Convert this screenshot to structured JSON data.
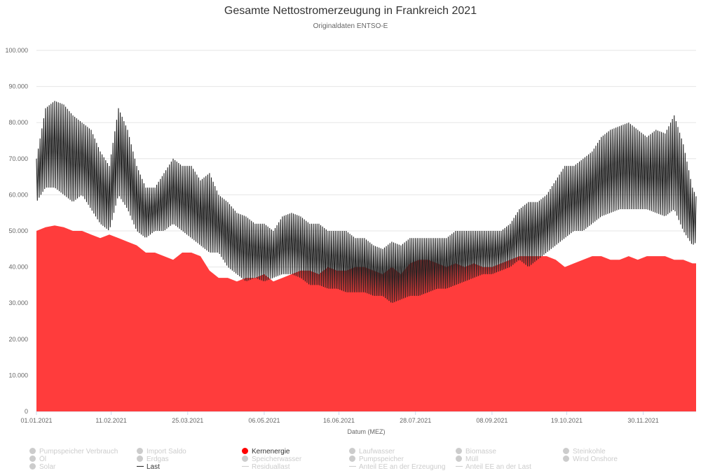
{
  "chart_data": {
    "type": "area",
    "title": "Gesamte Nettostromerzeugung in Frankreich 2021",
    "subtitle": "Originaldaten ENTSO-E",
    "xlabel": "Datum (MEZ)",
    "ylabel": "",
    "ylim": [
      0,
      100000
    ],
    "yticks": [
      "0",
      "10.000",
      "20.000",
      "30.000",
      "40.000",
      "50.000",
      "60.000",
      "70.000",
      "80.000",
      "90.000",
      "100.000"
    ],
    "xticks": [
      {
        "label": "01.01.2021",
        "day": 0
      },
      {
        "label": "11.02.2021",
        "day": 41
      },
      {
        "label": "25.03.2021",
        "day": 83
      },
      {
        "label": "06.05.2021",
        "day": 125
      },
      {
        "label": "16.06.2021",
        "day": 166
      },
      {
        "label": "28.07.2021",
        "day": 208
      },
      {
        "label": "08.09.2021",
        "day": 250
      },
      {
        "label": "19.10.2021",
        "day": 291
      },
      {
        "label": "30.11.2021",
        "day": 333
      }
    ],
    "x_step_days": 5,
    "series": [
      {
        "name": "Kernenergie",
        "color": "#ff3c3c",
        "type": "area",
        "values_thousand": [
          50,
          51,
          51.5,
          51,
          50,
          50,
          49,
          48,
          49,
          48,
          47,
          46,
          44,
          44,
          43,
          42,
          44,
          44,
          43,
          39,
          37,
          37,
          36,
          37,
          37,
          38,
          36,
          37,
          38,
          39,
          39,
          38,
          40,
          39,
          39,
          40,
          40,
          39,
          38,
          40,
          38,
          41,
          42,
          42,
          41,
          40,
          41,
          40,
          41,
          40,
          40,
          41,
          42,
          43,
          43,
          43,
          43,
          42,
          40,
          41,
          42,
          43,
          43,
          42,
          42,
          43,
          42,
          43,
          43,
          43,
          42,
          42,
          41,
          41
        ]
      },
      {
        "name": "Last",
        "color": "#222222",
        "type": "line",
        "daily_max_thousand": [
          70,
          84,
          86,
          85,
          82,
          80,
          78,
          72,
          68,
          84,
          78,
          68,
          62,
          62,
          66,
          70,
          68,
          68,
          64,
          66,
          60,
          58,
          55,
          54,
          52,
          52,
          50,
          54,
          55,
          54,
          52,
          52,
          50,
          50,
          50,
          48,
          48,
          46,
          45,
          47,
          46,
          48,
          48,
          48,
          48,
          48,
          50,
          50,
          50,
          50,
          50,
          50,
          52,
          56,
          58,
          58,
          60,
          64,
          68,
          68,
          70,
          72,
          76,
          78,
          79,
          80,
          78,
          76,
          78,
          77,
          82,
          74,
          62,
          56
        ],
        "daily_min_thousand": [
          58,
          62,
          62,
          60,
          58,
          60,
          56,
          52,
          50,
          60,
          56,
          50,
          48,
          50,
          50,
          52,
          50,
          48,
          46,
          44,
          44,
          40,
          38,
          36,
          37,
          36,
          37,
          38,
          38,
          37,
          35,
          35,
          34,
          34,
          33,
          33,
          33,
          32,
          32,
          30,
          31,
          32,
          32,
          33,
          34,
          34,
          35,
          36,
          37,
          38,
          38,
          39,
          40,
          42,
          40,
          42,
          44,
          46,
          48,
          50,
          50,
          52,
          54,
          55,
          56,
          56,
          56,
          56,
          55,
          54,
          56,
          50,
          46,
          48
        ]
      }
    ],
    "legend": {
      "placement": "bottom",
      "items": [
        {
          "label": "Pumpspeicher Verbrauch",
          "kind": "dot",
          "active": false
        },
        {
          "label": "Import Saldo",
          "kind": "dot",
          "active": false
        },
        {
          "label": "Kernenergie",
          "kind": "dot",
          "active": true,
          "color": "#ff0000"
        },
        {
          "label": "Laufwasser",
          "kind": "dot",
          "active": false
        },
        {
          "label": "Biomasse",
          "kind": "dot",
          "active": false
        },
        {
          "label": "Steinkohle",
          "kind": "dot",
          "active": false
        },
        {
          "label": "Öl",
          "kind": "dot",
          "active": false
        },
        {
          "label": "Erdgas",
          "kind": "dot",
          "active": false
        },
        {
          "label": "Speicherwasser",
          "kind": "dot",
          "active": false
        },
        {
          "label": "Pumpspeicher",
          "kind": "dot",
          "active": false
        },
        {
          "label": "Müll",
          "kind": "dot",
          "active": false
        },
        {
          "label": "Wind Onshore",
          "kind": "dot",
          "active": false
        },
        {
          "label": "Solar",
          "kind": "dot",
          "active": false
        },
        {
          "label": "Last",
          "kind": "line",
          "active": true,
          "color": "#222222"
        },
        {
          "label": "Residuallast",
          "kind": "line",
          "active": false
        },
        {
          "label": "Anteil EE an der Erzeugung",
          "kind": "line",
          "active": false
        },
        {
          "label": "Anteil EE an der Last",
          "kind": "line",
          "active": false
        }
      ]
    }
  }
}
